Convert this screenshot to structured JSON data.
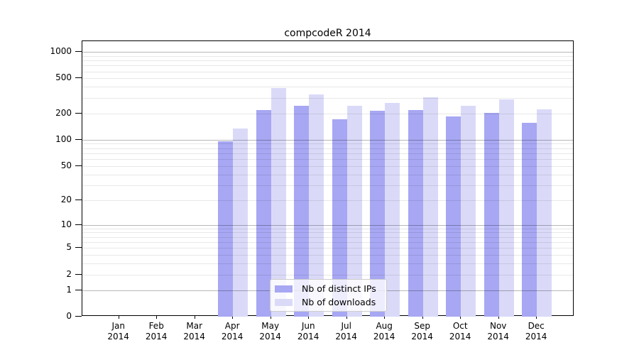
{
  "title": "compcodeR 2014",
  "chart_data": {
    "type": "bar",
    "title": "compcodeR 2014",
    "x_categories": [
      "Jan 2014",
      "Feb 2014",
      "Mar 2014",
      "Apr 2014",
      "May 2014",
      "Jun 2014",
      "Jul 2014",
      "Aug 2014",
      "Sep 2014",
      "Oct 2014",
      "Nov 2014",
      "Dec 2014"
    ],
    "series": [
      {
        "name": "Nb of distinct IPs",
        "color": "#a7a7f3",
        "values": [
          0,
          0,
          0,
          96,
          217,
          242,
          171,
          214,
          220,
          185,
          204,
          157
        ]
      },
      {
        "name": "Nb of downloads",
        "color": "#dadaf8",
        "values": [
          0,
          0,
          0,
          135,
          390,
          330,
          242,
          263,
          305,
          245,
          289,
          222
        ]
      }
    ],
    "y_axis": {
      "scale": "log1p",
      "ticks": [
        0,
        1,
        2,
        5,
        10,
        20,
        50,
        100,
        200,
        500,
        1000
      ],
      "major_gridlines": [
        1,
        10,
        100,
        1000
      ]
    },
    "grid": true,
    "legend_position": "bottom-center",
    "colors": {
      "axis": "#000000",
      "text": "#000000"
    }
  }
}
